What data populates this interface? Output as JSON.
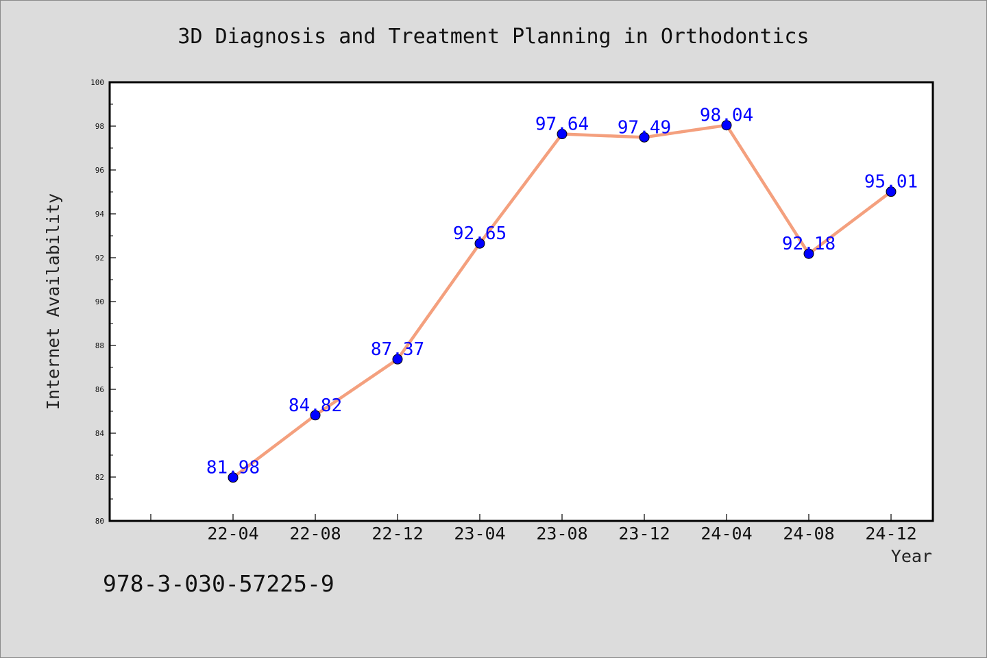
{
  "chart_data": {
    "type": "line",
    "title": "3D Diagnosis and Treatment Planning in Orthodontics",
    "xlabel": "Year",
    "ylabel": "Internet Availability",
    "categories": [
      "22-04",
      "22-08",
      "22-12",
      "23-04",
      "23-08",
      "23-12",
      "24-04",
      "24-08",
      "24-12"
    ],
    "series": [
      {
        "values": [
          81.98,
          84.82,
          87.37,
          92.65,
          97.64,
          97.49,
          98.04,
          92.18,
          95.01
        ],
        "labels": [
          "81.98",
          "84.82",
          "87.37",
          "92.65",
          "97.64",
          "97.49",
          "98.04",
          "92.18",
          "95.01"
        ],
        "line_color": "#f4a07e",
        "marker_color": "#0000ff"
      }
    ],
    "ylim": [
      80,
      100
    ],
    "yticks": [
      "80",
      "82",
      "84",
      "86",
      "88",
      "90",
      "92",
      "94",
      "96",
      "98",
      "100"
    ],
    "grid": false,
    "legend": "none"
  },
  "footer": {
    "isbn": "978-3-030-57225-9"
  }
}
